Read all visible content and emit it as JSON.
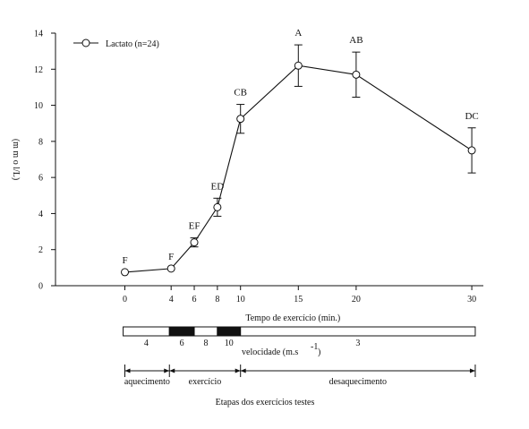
{
  "chart_data": {
    "type": "line",
    "title": "",
    "xlabel": "Tempo de exercício (min.)",
    "ylabel": "(m m o l/L)",
    "xlim": [
      -6,
      31
    ],
    "ylim": [
      0,
      14
    ],
    "x_ticks": [
      0,
      4,
      6,
      8,
      10,
      15,
      20,
      30
    ],
    "y_ticks": [
      0,
      2,
      4,
      6,
      8,
      10,
      12,
      14
    ],
    "grid": false,
    "legend_position": "top-left",
    "series": [
      {
        "name": "Lactato (n=24)",
        "marker": "open-circle",
        "points": [
          {
            "x": 0,
            "y": 0.75,
            "err": 0.0,
            "label": "F"
          },
          {
            "x": 4,
            "y": 0.95,
            "err": 0.0,
            "label": "F"
          },
          {
            "x": 6,
            "y": 2.4,
            "err": 0.25,
            "label": "EF"
          },
          {
            "x": 8,
            "y": 4.35,
            "err": 0.5,
            "label": "ED"
          },
          {
            "x": 10,
            "y": 9.25,
            "err": 0.8,
            "label": "CB"
          },
          {
            "x": 15,
            "y": 12.2,
            "err": 1.15,
            "label": "A"
          },
          {
            "x": 20,
            "y": 11.7,
            "err": 1.25,
            "label": "AB"
          },
          {
            "x": 30,
            "y": 7.5,
            "err": 1.25,
            "label": "DC"
          }
        ]
      }
    ],
    "velocity_bar": {
      "label_prefix": "velocidade (m.s",
      "label_exp": "-1",
      "label_suffix": ")",
      "segments": [
        {
          "from": -0.15,
          "to": 3.85,
          "fill": "white",
          "label": "4"
        },
        {
          "from": 3.85,
          "to": 6.0,
          "fill": "black",
          "label": "6"
        },
        {
          "from": 6.0,
          "to": 8.0,
          "fill": "white",
          "label": "8"
        },
        {
          "from": 8.0,
          "to": 10.0,
          "fill": "black",
          "label": "10"
        },
        {
          "from": 10.0,
          "to": 30.3,
          "fill": "white",
          "label": "3"
        }
      ]
    },
    "stages": {
      "caption": "Etapas dos exercícios testes",
      "items": [
        {
          "from": 0,
          "to": 3.85,
          "label": "aquecimento"
        },
        {
          "from": 3.85,
          "to": 10,
          "label": "exercício"
        },
        {
          "from": 10,
          "to": 30.3,
          "label": "desaquecimento"
        }
      ]
    },
    "colors": {
      "line": "#111111",
      "marker_fill": "#ffffff",
      "dark_segment": "#111111"
    }
  }
}
